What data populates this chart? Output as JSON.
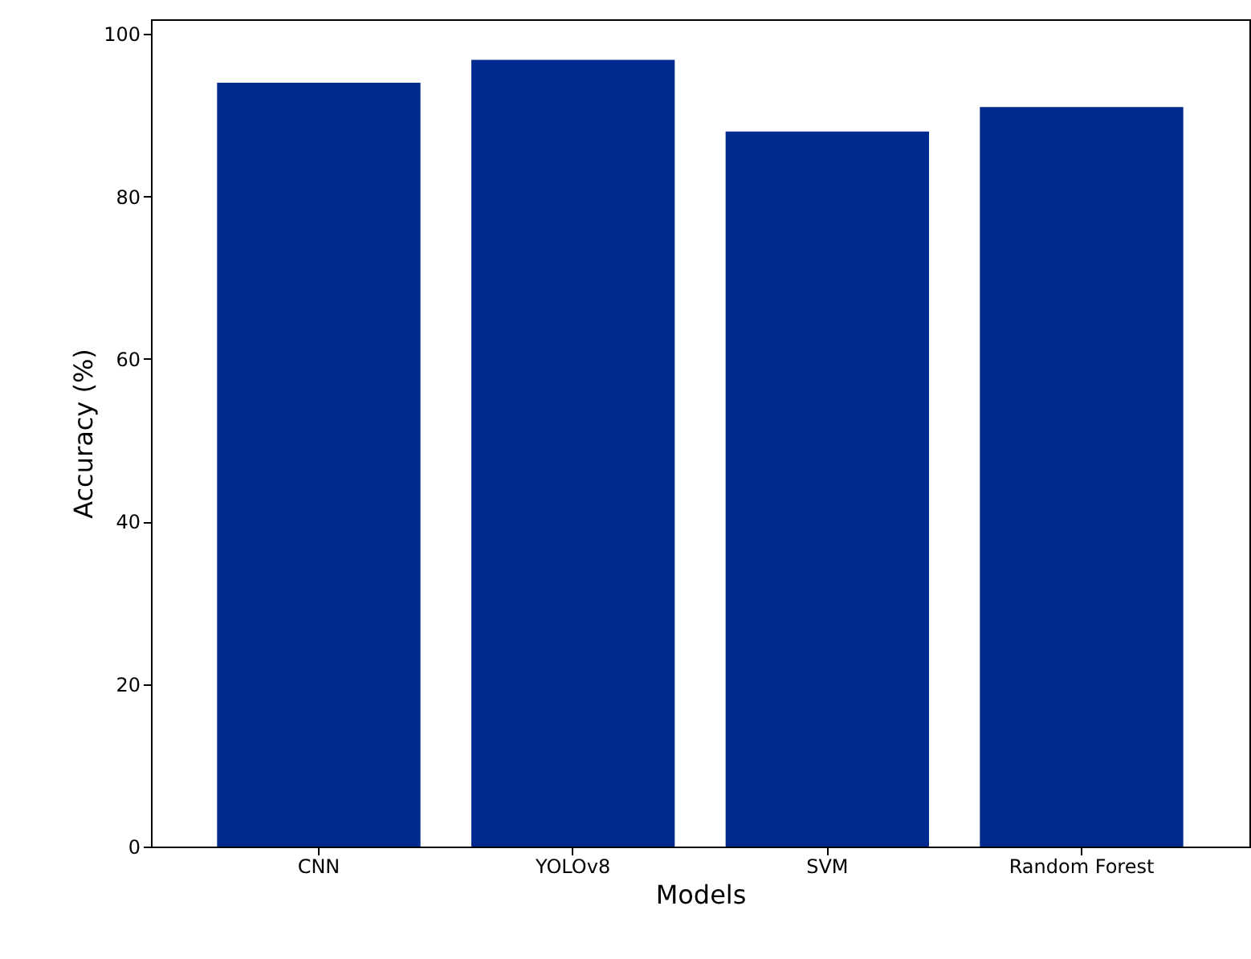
{
  "chart_data": {
    "type": "bar",
    "xlabel": "Models",
    "ylabel": "Accuracy (%)",
    "categories": [
      "CNN",
      "YOLOv8",
      "SVM",
      "Random Forest"
    ],
    "values": [
      94,
      96.8,
      88,
      91
    ],
    "color": "#002a8f",
    "ylim": [
      0,
      101.8
    ],
    "yticks": [
      0,
      20,
      40,
      60,
      80,
      100
    ],
    "grid": false
  }
}
